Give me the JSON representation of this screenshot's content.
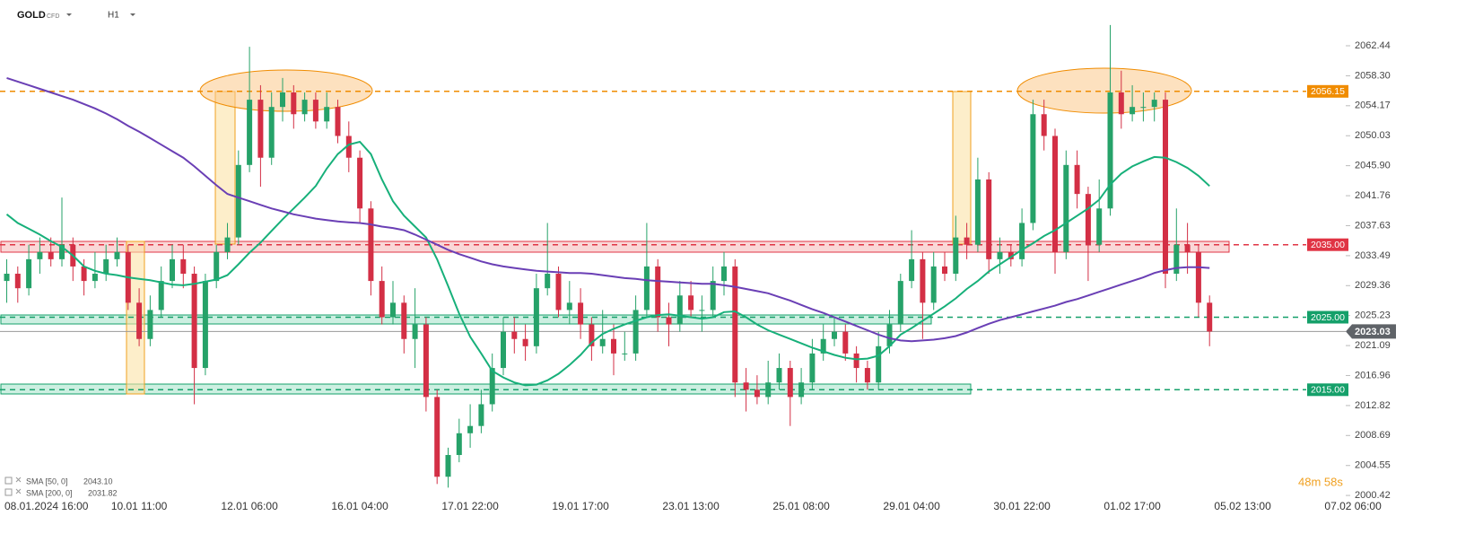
{
  "chart_data": {
    "type": "candlestick",
    "title": "GOLD",
    "subtitle": "CFD",
    "timeframe": "H1",
    "up_color": "#26a269",
    "down_color": "#d32f45",
    "categories": [
      null,
      null,
      "08.01.2024 16:00",
      null,
      null,
      null,
      null,
      null,
      null,
      null,
      null,
      null,
      "10.01 11:00",
      null,
      null,
      null,
      null,
      null,
      null,
      null,
      null,
      null,
      "12.01 06:00",
      null,
      null,
      null,
      null,
      null,
      null,
      null,
      null,
      null,
      "16.01 04:00",
      null,
      null,
      null,
      null,
      null,
      null,
      null,
      null,
      null,
      "17.01 22:00",
      null,
      null,
      null,
      null,
      null,
      null,
      null,
      null,
      null,
      "19.01 17:00",
      null,
      null,
      null,
      null,
      null,
      null,
      null,
      null,
      null,
      "23.01 13:00",
      null,
      null,
      null,
      null,
      null,
      null,
      null,
      null,
      null,
      "25.01 08:00",
      null,
      null,
      null,
      null,
      null,
      null,
      null,
      null,
      null,
      "29.01 04:00",
      null,
      null,
      null,
      null,
      null,
      null,
      null,
      null,
      null,
      "30.01 22:00",
      null,
      null,
      null,
      null,
      null,
      null,
      null,
      null,
      null,
      "01.02 17:00",
      null,
      null,
      null,
      null,
      null,
      null,
      null,
      null,
      null,
      "05.02 13:00",
      null,
      null,
      null,
      null,
      null,
      null,
      null,
      null,
      null,
      "07.02 06:00"
    ],
    "candles": [
      [
        2030,
        2033,
        2027,
        2031
      ],
      [
        2031,
        2032,
        2027,
        2029
      ],
      [
        2029,
        2035,
        2028,
        2033
      ],
      [
        2033,
        2036,
        2031,
        2034
      ],
      [
        2034,
        2036,
        2032,
        2033
      ],
      [
        2033,
        2041.5,
        2032,
        2035
      ],
      [
        2035,
        2036,
        2030,
        2032
      ],
      [
        2032,
        2033,
        2028,
        2030
      ],
      [
        2030,
        2034,
        2029,
        2031
      ],
      [
        2031,
        2035,
        2030,
        2033
      ],
      [
        2033,
        2036,
        2032,
        2034
      ],
      [
        2034,
        2035,
        2026,
        2027
      ],
      [
        2027,
        2029,
        2021,
        2022
      ],
      [
        2022,
        2028,
        2021,
        2026
      ],
      [
        2026,
        2032,
        2025,
        2030
      ],
      [
        2030,
        2035,
        2029,
        2033
      ],
      [
        2033,
        2035,
        2029,
        2031
      ],
      [
        2031,
        2032,
        2013,
        2018
      ],
      [
        2018,
        2031,
        2017,
        2030
      ],
      [
        2030,
        2035,
        2029,
        2034
      ],
      [
        2034,
        2038,
        2033,
        2036
      ],
      [
        2036,
        2048,
        2035,
        2046
      ],
      [
        2046,
        2062.3,
        2045,
        2055
      ],
      [
        2055,
        2057,
        2043,
        2047
      ],
      [
        2047,
        2056,
        2046,
        2054
      ],
      [
        2054,
        2058,
        2052,
        2056
      ],
      [
        2056,
        2057,
        2051,
        2053
      ],
      [
        2053,
        2056,
        2052,
        2055
      ],
      [
        2055,
        2056,
        2051,
        2052
      ],
      [
        2052,
        2056,
        2051,
        2054
      ],
      [
        2054,
        2055,
        2049,
        2050
      ],
      [
        2050,
        2052,
        2045,
        2047
      ],
      [
        2047,
        2048,
        2038,
        2040
      ],
      [
        2040,
        2041,
        2028,
        2030
      ],
      [
        2030,
        2032,
        2024,
        2025
      ],
      [
        2025,
        2030,
        2024,
        2027
      ],
      [
        2027,
        2028,
        2020,
        2022
      ],
      [
        2022,
        2029,
        2018,
        2024
      ],
      [
        2024,
        2025,
        2012,
        2014
      ],
      [
        2014,
        2015,
        2002,
        2003
      ],
      [
        2003,
        2007,
        2001.5,
        2006
      ],
      [
        2006,
        2011,
        2005,
        2009
      ],
      [
        2009,
        2013,
        2007,
        2010
      ],
      [
        2010,
        2015,
        2009,
        2013
      ],
      [
        2013,
        2020,
        2012,
        2018
      ],
      [
        2018,
        2025,
        2017,
        2023
      ],
      [
        2023,
        2025,
        2020,
        2022
      ],
      [
        2022,
        2024,
        2019,
        2021
      ],
      [
        2021,
        2031,
        2020,
        2029
      ],
      [
        2029,
        2038,
        2028,
        2031
      ],
      [
        2031,
        2032,
        2025,
        2026
      ],
      [
        2026,
        2030,
        2024,
        2027
      ],
      [
        2027,
        2029,
        2022,
        2024
      ],
      [
        2024,
        2025,
        2019,
        2021
      ],
      [
        2021,
        2026,
        2020,
        2022
      ],
      [
        2022,
        2024,
        2017,
        2020
      ],
      [
        2020,
        2023,
        2019,
        2020
      ],
      [
        2020,
        2028,
        2019,
        2026
      ],
      [
        2026,
        2038,
        2025,
        2032
      ],
      [
        2032,
        2033,
        2023,
        2025
      ],
      [
        2025,
        2027,
        2021,
        2024
      ],
      [
        2024,
        2030,
        2023,
        2028
      ],
      [
        2028,
        2030,
        2025,
        2026
      ],
      [
        2026,
        2028,
        2023,
        2026
      ],
      [
        2026,
        2032,
        2025,
        2030
      ],
      [
        2030,
        2034,
        2028,
        2032
      ],
      [
        2032,
        2033,
        2014,
        2016
      ],
      [
        2016,
        2018,
        2012,
        2015
      ],
      [
        2015,
        2017,
        2013,
        2014
      ],
      [
        2014,
        2019,
        2013,
        2016
      ],
      [
        2016,
        2020,
        2015,
        2018
      ],
      [
        2018,
        2019,
        2010,
        2014
      ],
      [
        2014,
        2018,
        2013,
        2016
      ],
      [
        2016,
        2022,
        2015,
        2020
      ],
      [
        2020,
        2024,
        2019,
        2022
      ],
      [
        2022,
        2025,
        2021,
        2023
      ],
      [
        2023,
        2024,
        2019,
        2020
      ],
      [
        2020,
        2021,
        2016,
        2018
      ],
      [
        2018,
        2019,
        2015,
        2016
      ],
      [
        2016,
        2023,
        2015,
        2021
      ],
      [
        2021,
        2026,
        2020,
        2024
      ],
      [
        2024,
        2031,
        2023,
        2030
      ],
      [
        2030,
        2037,
        2029,
        2033
      ],
      [
        2033,
        2034,
        2022,
        2027
      ],
      [
        2027,
        2034,
        2026,
        2032
      ],
      [
        2032,
        2034,
        2030,
        2031
      ],
      [
        2031,
        2039,
        2030,
        2036
      ],
      [
        2036,
        2038,
        2033,
        2035
      ],
      [
        2035,
        2047,
        2034,
        2044
      ],
      [
        2044,
        2045,
        2031,
        2033
      ],
      [
        2033,
        2036,
        2031,
        2034
      ],
      [
        2034,
        2035,
        2032,
        2033
      ],
      [
        2033,
        2040,
        2032,
        2038
      ],
      [
        2038,
        2055,
        2037,
        2053
      ],
      [
        2053,
        2055,
        2048,
        2050
      ],
      [
        2050,
        2051,
        2031,
        2034
      ],
      [
        2034,
        2048,
        2033,
        2046
      ],
      [
        2046,
        2048,
        2040,
        2042
      ],
      [
        2042,
        2043,
        2030,
        2035
      ],
      [
        2035,
        2044,
        2034,
        2040
      ],
      [
        2040,
        2065.3,
        2039,
        2056
      ],
      [
        2056,
        2059,
        2051,
        2053
      ],
      [
        2053,
        2057,
        2052,
        2054
      ],
      [
        2054,
        2056,
        2052,
        2054
      ],
      [
        2054,
        2056,
        2052,
        2055
      ],
      [
        2055,
        2056,
        2029,
        2031
      ],
      [
        2031,
        2040,
        2030,
        2035
      ],
      [
        2035,
        2038,
        2031,
        2034
      ],
      [
        2034,
        2035,
        2025,
        2027
      ],
      [
        2027,
        2028,
        2021,
        2023.03
      ],
      null,
      null,
      null,
      null,
      null,
      null,
      null,
      null,
      null,
      null,
      null,
      null,
      null
    ],
    "series": [
      {
        "name": "SMA [50, 0]",
        "color": "#17b07a",
        "legend_value": {
          "value": 2043.1,
          "label": "2043.10"
        },
        "values": [
          2039.2,
          2038.0,
          2037.2,
          2036.4,
          2035.5,
          2034.7,
          2033.5,
          2032.0,
          2031.4,
          2031.0,
          2030.8,
          2030.5,
          2030.3,
          2030.1,
          2029.8,
          2029.5,
          2029.4,
          2029.6,
          2029.9,
          2030.2,
          2030.8,
          2032.3,
          2033.9,
          2035.3,
          2036.9,
          2038.5,
          2040.0,
          2041.5,
          2043.1,
          2045.5,
          2047.5,
          2048.8,
          2049.2,
          2047.5,
          2044.0,
          2041.0,
          2039.0,
          2037.5,
          2036.0,
          2033.0,
          2029.3,
          2025.5,
          2022.3,
          2020.0,
          2017.6,
          2016.7,
          2016.0,
          2015.6,
          2015.7,
          2016.3,
          2017.2,
          2018.4,
          2019.8,
          2021.5,
          2022.7,
          2023.4,
          2024.0,
          2024.5,
          2025.0,
          2025.3,
          2025.4,
          2025.2,
          2025.0,
          2024.8,
          2025.0,
          2025.7,
          2025.8,
          2025.0,
          2024.0,
          2023.2,
          2022.6,
          2022.0,
          2021.4,
          2020.8,
          2020.3,
          2019.8,
          2019.4,
          2019.2,
          2019.3,
          2019.7,
          2021.0,
          2022.6,
          2023.5,
          2024.5,
          2025.5,
          2026.5,
          2027.6,
          2028.9,
          2030.0,
          2031.3,
          2032.3,
          2033.3,
          2034.3,
          2035.2,
          2036.2,
          2037.0,
          2038.0,
          2039.0,
          2040.0,
          2041.2,
          2043.3,
          2044.8,
          2045.8,
          2046.5,
          2047.1,
          2047.0,
          2046.4,
          2045.6,
          2044.5,
          2043.1,
          null,
          null,
          null,
          null,
          null,
          null,
          null,
          null,
          null,
          null,
          null,
          null,
          null
        ]
      },
      {
        "name": "SMA [200, 0]",
        "color": "#6a3fb5",
        "legend_value": {
          "value": 2031.82,
          "label": "2031.82"
        },
        "values": [
          2058.0,
          2057.5,
          2057.0,
          2056.5,
          2056.0,
          2055.5,
          2055.0,
          2054.4,
          2053.8,
          2053.1,
          2052.3,
          2051.4,
          2050.6,
          2049.7,
          2048.8,
          2047.9,
          2047.0,
          2045.8,
          2044.5,
          2043.2,
          2042.0,
          2041.5,
          2041.0,
          2040.5,
          2040.0,
          2039.6,
          2039.2,
          2038.9,
          2038.6,
          2038.4,
          2038.2,
          2038.1,
          2038.0,
          2037.8,
          2037.5,
          2037.3,
          2037.0,
          2036.4,
          2035.7,
          2035.0,
          2034.3,
          2033.7,
          2033.2,
          2032.7,
          2032.3,
          2032.0,
          2031.8,
          2031.6,
          2031.4,
          2031.3,
          2031.2,
          2031.1,
          2031.1,
          2031.0,
          2030.8,
          2030.6,
          2030.4,
          2030.3,
          2030.1,
          2030.0,
          2029.9,
          2029.8,
          2029.7,
          2029.6,
          2029.6,
          2029.4,
          2029.2,
          2028.9,
          2028.6,
          2028.3,
          2027.8,
          2027.3,
          2026.7,
          2026.1,
          2025.6,
          2025.0,
          2024.4,
          2023.8,
          2023.2,
          2022.6,
          2022.1,
          2021.8,
          2021.7,
          2021.8,
          2021.9,
          2022.1,
          2022.4,
          2022.9,
          2023.5,
          2024.1,
          2024.6,
          2025.0,
          2025.4,
          2025.8,
          2026.2,
          2026.6,
          2027.1,
          2027.5,
          2028.0,
          2028.5,
          2029.0,
          2029.5,
          2030.0,
          2030.5,
          2031.1,
          2031.5,
          2031.8,
          2031.9,
          2031.9,
          2031.8,
          null,
          null,
          null,
          null,
          null,
          null,
          null,
          null,
          null,
          null,
          null,
          null,
          null
        ]
      }
    ],
    "levels": [
      {
        "value": 2056.15,
        "label": "2056.15",
        "color": "#f08c00"
      },
      {
        "value": 2035,
        "label": "2035.00",
        "color": "#e03444"
      },
      {
        "value": 2025,
        "label": "2025.00",
        "color": "#15a06a"
      },
      {
        "value": 2015,
        "label": "2015.00",
        "color": "#15a06a"
      }
    ],
    "current_price": 2023.03,
    "countdown": "48m 58s",
    "ylim": [
      1997.71,
      2068.75
    ],
    "yticks": [
      2062.44,
      {
        "value": 2058.3,
        "label": "2058.30"
      },
      2054.17,
      2050.03,
      {
        "value": 2045.9,
        "label": "2045.90"
      },
      2041.76,
      2037.63,
      2033.49,
      2029.36,
      2025.23,
      2021.09,
      2016.96,
      2012.82,
      2008.69,
      2004.55,
      2000.42
    ]
  }
}
